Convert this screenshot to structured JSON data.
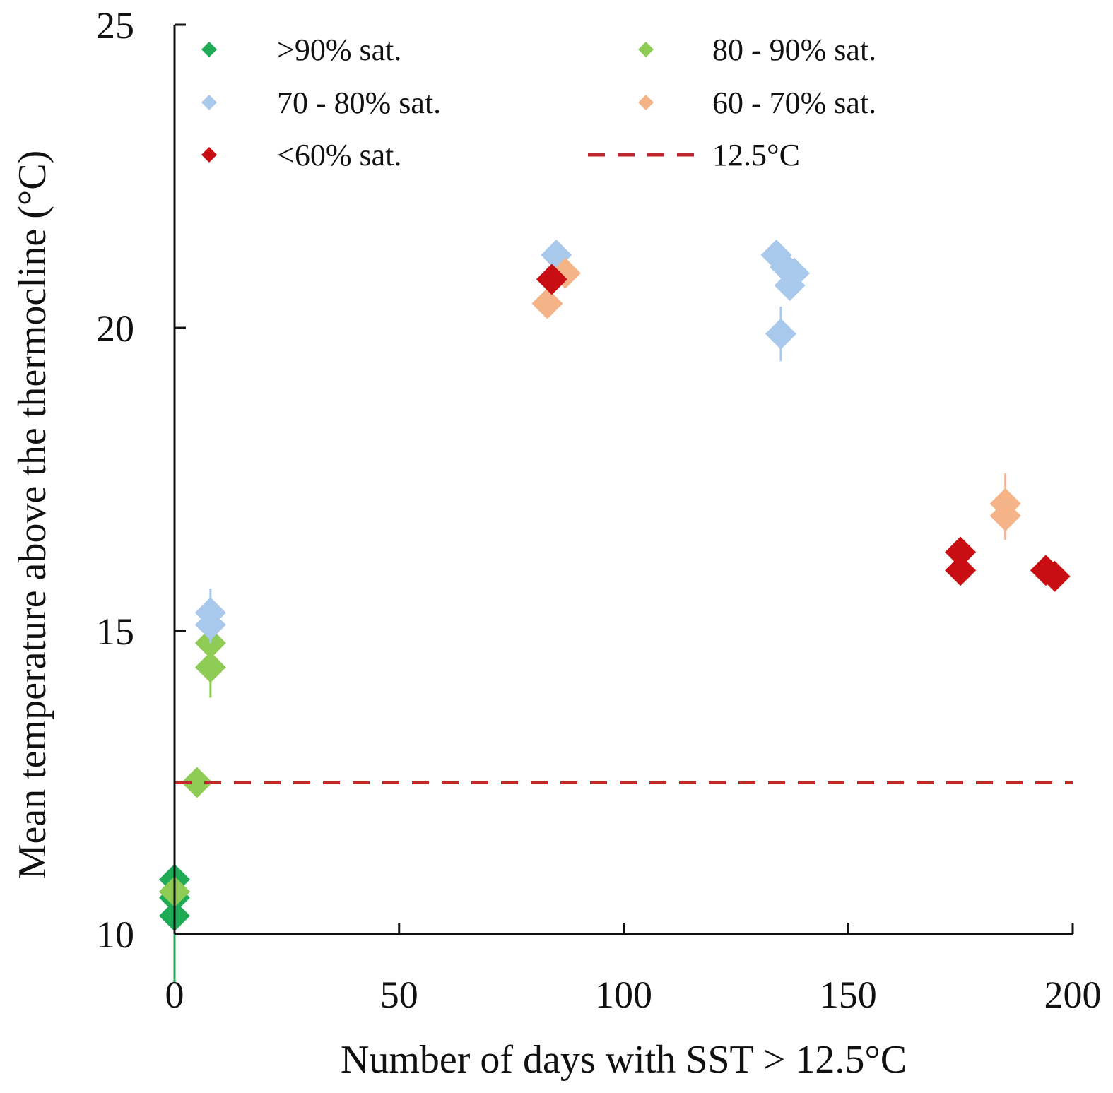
{
  "chart_data": {
    "type": "scatter",
    "title": "",
    "xlabel": "Number of days with SST > 12.5°C",
    "ylabel": "Mean temperature above the thermocline (°C)",
    "xlim": [
      0,
      200
    ],
    "ylim": [
      10,
      25
    ],
    "xticks": [
      0,
      50,
      100,
      150,
      200
    ],
    "yticks": [
      10,
      15,
      20,
      25
    ],
    "xtick_labels": [
      "0",
      "50",
      "100",
      "150",
      "200"
    ],
    "ytick_labels": [
      "10",
      "15",
      "20",
      "25"
    ],
    "grid": false,
    "legend_position": "top",
    "reference_line": {
      "name": "12.5°C",
      "y": 12.5,
      "color": "#c0282d",
      "style": "dashed"
    },
    "series": [
      {
        "name": ">90% sat.",
        "color": "#1faa55",
        "points": [
          {
            "x": 0,
            "y": 10.9,
            "err": 0.1
          },
          {
            "x": 0,
            "y": 10.6,
            "err": 0.1
          },
          {
            "x": 0,
            "y": 10.3,
            "err": 0.1
          },
          {
            "x": 0,
            "y": 10.7,
            "err": 1.5
          }
        ]
      },
      {
        "name": "80 - 90% sat.",
        "color": "#8fcc56",
        "points": [
          {
            "x": 0,
            "y": 10.7,
            "err": 0.1
          },
          {
            "x": 5,
            "y": 12.5,
            "err": 0.15
          },
          {
            "x": 8,
            "y": 14.8,
            "err": 0.4
          },
          {
            "x": 8,
            "y": 14.4,
            "err": 0.5
          }
        ]
      },
      {
        "name": "70 - 80% sat.",
        "color": "#a8c8ec",
        "points": [
          {
            "x": 8,
            "y": 15.3,
            "err": 0.4
          },
          {
            "x": 8,
            "y": 15.1,
            "err": 0.3
          },
          {
            "x": 85,
            "y": 21.2,
            "err": 0.1
          },
          {
            "x": 134,
            "y": 21.2,
            "err": 0.1
          },
          {
            "x": 136,
            "y": 21.0,
            "err": 0.2
          },
          {
            "x": 138,
            "y": 20.9,
            "err": 0.2
          },
          {
            "x": 137,
            "y": 20.7,
            "err": 0.15
          },
          {
            "x": 135,
            "y": 19.9,
            "err": 0.45
          }
        ]
      },
      {
        "name": "60 - 70% sat.",
        "color": "#f4b488",
        "points": [
          {
            "x": 83,
            "y": 20.4,
            "err": 0.15
          },
          {
            "x": 87,
            "y": 20.9,
            "err": 0.2
          },
          {
            "x": 185,
            "y": 17.1,
            "err": 0.5
          },
          {
            "x": 185,
            "y": 16.9,
            "err": 0.4
          }
        ]
      },
      {
        "name": "<60% sat.",
        "color": "#c80e12",
        "points": [
          {
            "x": 84,
            "y": 20.8,
            "err": 0.15
          },
          {
            "x": 175,
            "y": 16.3,
            "err": 0.15
          },
          {
            "x": 175,
            "y": 16.0,
            "err": 0.15
          },
          {
            "x": 194,
            "y": 16.0,
            "err": 0.15
          },
          {
            "x": 196,
            "y": 15.9,
            "err": 0.15
          }
        ]
      }
    ]
  }
}
